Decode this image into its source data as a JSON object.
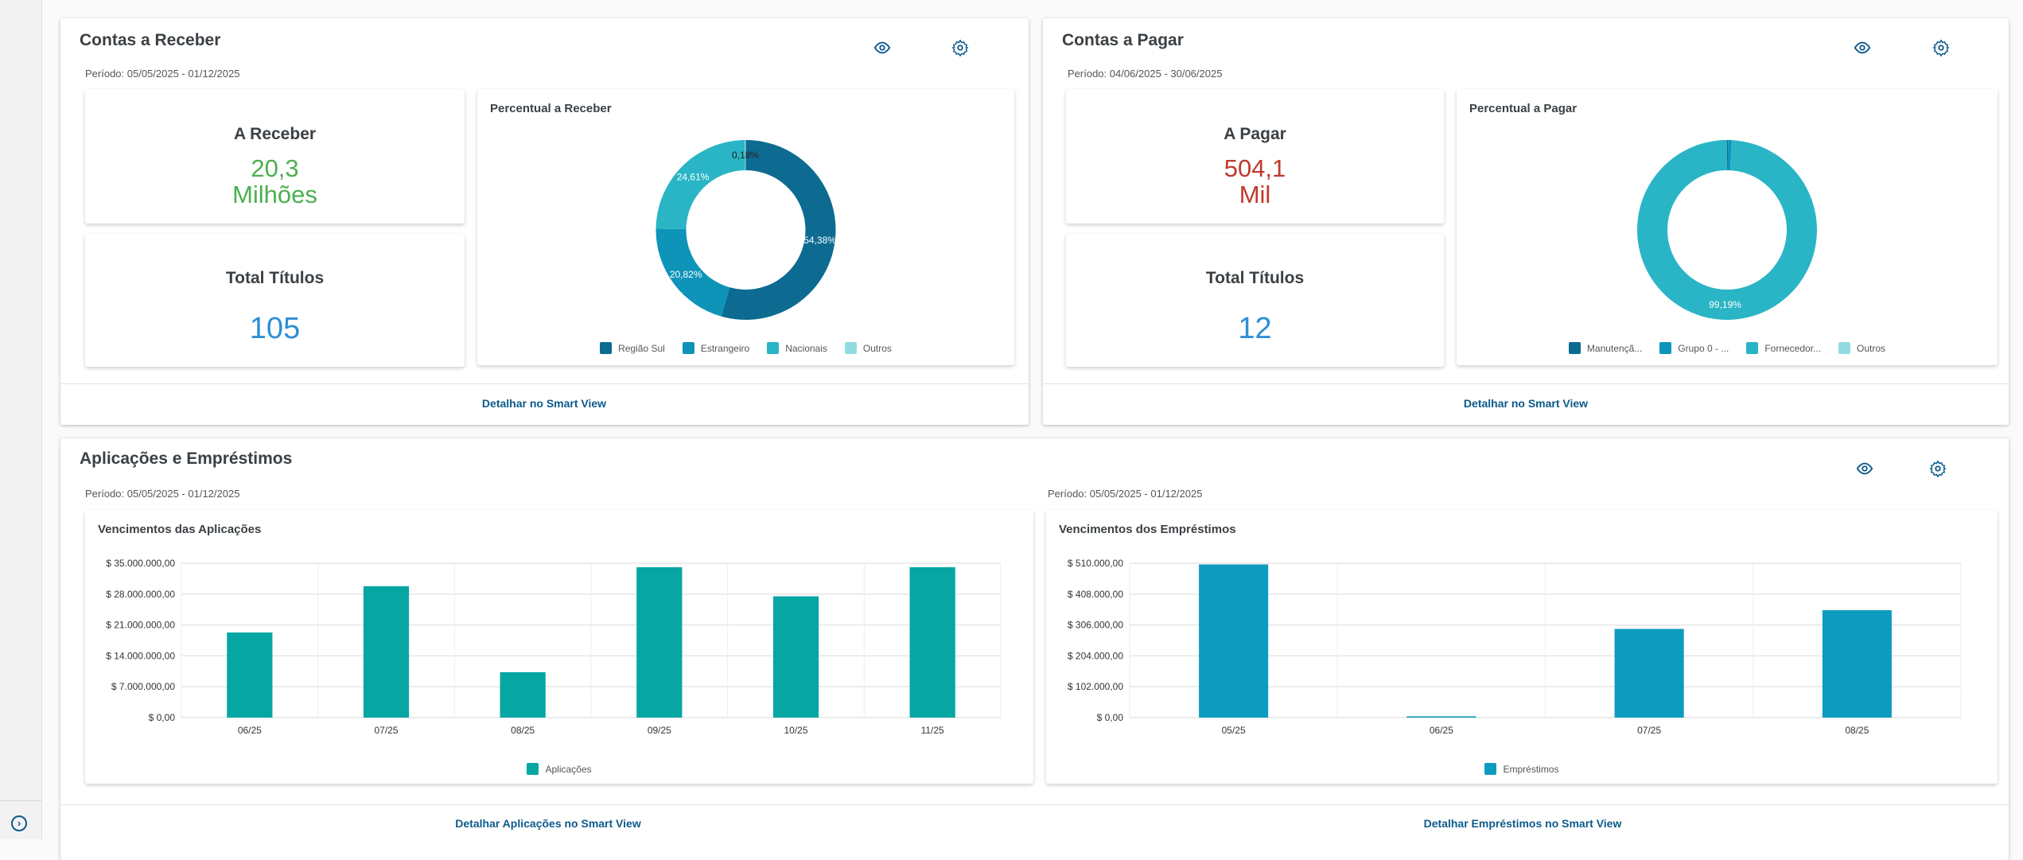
{
  "colors": {
    "accent": "#0c5a8a",
    "receber_value": "#4caf50",
    "pagar_value": "#c0392b",
    "count_value": "#2d8fd5",
    "aplicacoes_bar": "#06a6a3",
    "emprestimos_bar": "#0d9bc0"
  },
  "sidebar": {
    "expand_icon": "chevron-right-circle-icon"
  },
  "receber": {
    "title": "Contas a Receber",
    "period": "Período: 05/05/2025 - 01/12/2025",
    "icons": [
      "eye-icon",
      "gear-icon"
    ],
    "kpi1": {
      "title": "A Receber",
      "value": "20,3",
      "unit": "Milhões"
    },
    "kpi2": {
      "title": "Total Títulos",
      "value": "105"
    },
    "link": "Detalhar no Smart View"
  },
  "pagar": {
    "title": "Contas a Pagar",
    "period": "Período: 04/06/2025 - 30/06/2025",
    "icons": [
      "eye-icon",
      "gear-icon"
    ],
    "kpi1": {
      "title": "A Pagar",
      "value": "504,1",
      "unit": "Mil"
    },
    "kpi2": {
      "title": "Total Títulos",
      "value": "12"
    },
    "link": "Detalhar no Smart View"
  },
  "aplic": {
    "title": "Aplicações e Empréstimos",
    "icons": [
      "eye-icon",
      "gear-icon"
    ],
    "period_left": "Período: 05/05/2025 - 01/12/2025",
    "period_right": "Período: 05/05/2025 - 01/12/2025",
    "link_left": "Detalhar Aplicações no Smart View",
    "link_right": "Detalhar Empréstimos no Smart View"
  },
  "chart_data": [
    {
      "type": "pie",
      "donut": true,
      "title": "Percentual a Receber",
      "slices": [
        {
          "name": "Região Sul",
          "value": 54.38,
          "label": "54,38%",
          "color": "#0d6b92"
        },
        {
          "name": "Estrangeiro",
          "value": 20.82,
          "label": "20,82%",
          "color": "#0e94b8"
        },
        {
          "name": "Nacionais",
          "value": 24.61,
          "label": "24,61%",
          "color": "#29b5c5"
        },
        {
          "name": "Outros",
          "value": 0.18,
          "label": "0,18%",
          "color": "#93dbe3"
        }
      ],
      "legend": "bottom"
    },
    {
      "type": "pie",
      "donut": true,
      "title": "Percentual a Pagar",
      "slices": [
        {
          "name": "Manutençã...",
          "value": 0.17,
          "label": "0,17%",
          "color": "#0d6b92"
        },
        {
          "name": "Grupo 0 - ...",
          "value": 0.64,
          "label": "",
          "color": "#0e94b8"
        },
        {
          "name": "Fornecedor...",
          "value": 99.19,
          "label": "99,19%",
          "color": "#29b5c5"
        },
        {
          "name": "Outros",
          "value": 0,
          "label": "",
          "color": "#93dbe3"
        }
      ],
      "legend": "bottom"
    },
    {
      "type": "bar",
      "title": "Vencimentos das Aplicações",
      "categories": [
        "06/25",
        "07/25",
        "08/25",
        "09/25",
        "10/25",
        "11/25"
      ],
      "series": [
        {
          "name": "Aplicações",
          "values": [
            19300000,
            29800000,
            10300000,
            34100000,
            27500000,
            34100000
          ],
          "color": "#06a6a3"
        }
      ],
      "ylim": [
        0,
        35000000
      ],
      "yticks": [
        "$ 0,00",
        "$ 7.000.000,00",
        "$ 14.000.000,00",
        "$ 21.000.000,00",
        "$ 28.000.000,00",
        "$ 35.000.000,00"
      ],
      "grid": true,
      "legend": "bottom"
    },
    {
      "type": "bar",
      "title": "Vencimentos dos Empréstimos",
      "categories": [
        "05/25",
        "06/25",
        "07/25",
        "08/25"
      ],
      "series": [
        {
          "name": "Empréstimos",
          "values": [
            506000,
            4300,
            293000,
            355000
          ],
          "color": "#0d9bc0"
        }
      ],
      "ylim": [
        0,
        510000
      ],
      "yticks": [
        "$ 0,00",
        "$ 102.000,00",
        "$ 204.000,00",
        "$ 306.000,00",
        "$ 408.000,00",
        "$ 510.000,00"
      ],
      "grid": true,
      "legend": "bottom"
    }
  ]
}
